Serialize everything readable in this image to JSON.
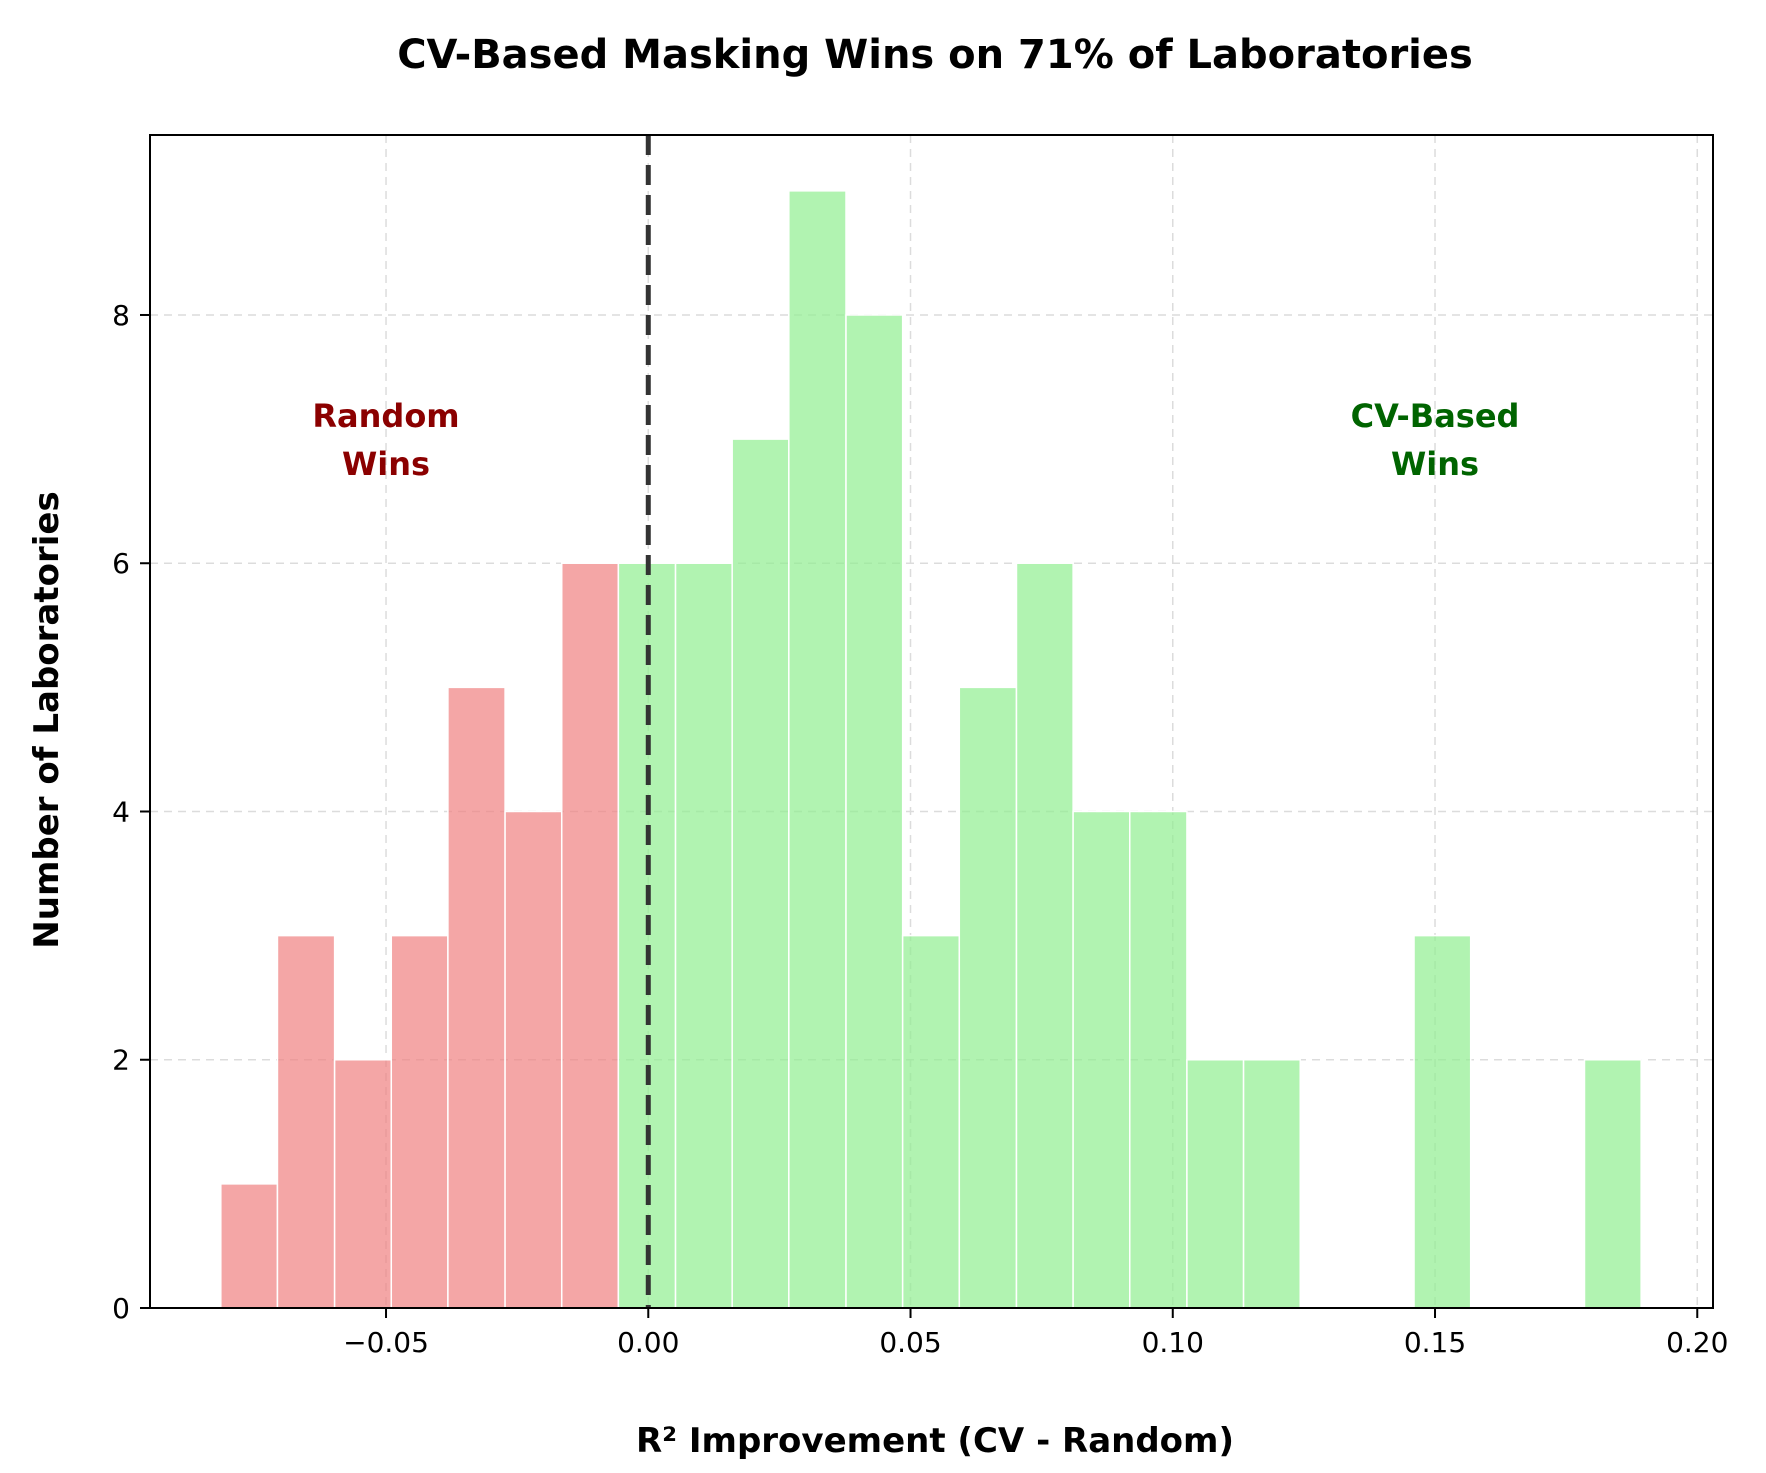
{
  "chart_data": {
    "type": "bar",
    "title": "CV-Based Masking Wins on 71% of Laboratories",
    "xlabel": "R² Improvement (CV - Random)",
    "ylabel": "Number of Laboratories",
    "xlim": [
      -0.095,
      0.203
    ],
    "ylim": [
      0,
      9.45
    ],
    "bin_width": 0.01083,
    "grid": true,
    "xticks": [
      {
        "value": -0.05,
        "label": "−0.05"
      },
      {
        "value": 0.0,
        "label": "0.00"
      },
      {
        "value": 0.05,
        "label": "0.05"
      },
      {
        "value": 0.1,
        "label": "0.10"
      },
      {
        "value": 0.15,
        "label": "0.15"
      },
      {
        "value": 0.2,
        "label": "0.20"
      }
    ],
    "yticks": [
      {
        "value": 0,
        "label": "0"
      },
      {
        "value": 2,
        "label": "2"
      },
      {
        "value": 4,
        "label": "4"
      },
      {
        "value": 6,
        "label": "6"
      },
      {
        "value": 8,
        "label": "8"
      }
    ],
    "series": [
      {
        "name": "Random Wins",
        "color": "#f08080",
        "bins": [
          {
            "x0": -0.0815,
            "x1": -0.0707,
            "count": 1
          },
          {
            "x0": -0.0707,
            "x1": -0.0598,
            "count": 3
          },
          {
            "x0": -0.0598,
            "x1": -0.049,
            "count": 2
          },
          {
            "x0": -0.049,
            "x1": -0.0382,
            "count": 3
          },
          {
            "x0": -0.0382,
            "x1": -0.0273,
            "count": 5
          },
          {
            "x0": -0.0273,
            "x1": -0.0165,
            "count": 4
          },
          {
            "x0": -0.0165,
            "x1": -0.0057,
            "count": 6
          }
        ]
      },
      {
        "name": "CV-Based Wins",
        "color": "#90ee90",
        "bins": [
          {
            "x0": -0.0057,
            "x1": 0.0052,
            "count": 6
          },
          {
            "x0": 0.0052,
            "x1": 0.016,
            "count": 6
          },
          {
            "x0": 0.016,
            "x1": 0.0268,
            "count": 7
          },
          {
            "x0": 0.0268,
            "x1": 0.0377,
            "count": 9
          },
          {
            "x0": 0.0377,
            "x1": 0.0485,
            "count": 8
          },
          {
            "x0": 0.0485,
            "x1": 0.0593,
            "count": 3
          },
          {
            "x0": 0.0593,
            "x1": 0.0702,
            "count": 5
          },
          {
            "x0": 0.0702,
            "x1": 0.081,
            "count": 6
          },
          {
            "x0": 0.081,
            "x1": 0.0918,
            "count": 4
          },
          {
            "x0": 0.0918,
            "x1": 0.1027,
            "count": 4
          },
          {
            "x0": 0.1027,
            "x1": 0.1135,
            "count": 2
          },
          {
            "x0": 0.1135,
            "x1": 0.1243,
            "count": 2
          },
          {
            "x0": 0.146,
            "x1": 0.1568,
            "count": 3
          },
          {
            "x0": 0.1785,
            "x1": 0.1893,
            "count": 2
          }
        ]
      }
    ],
    "reference_line": {
      "x": 0.0,
      "style": "dashed",
      "color": "#333333"
    },
    "annotations": [
      {
        "lines": [
          "Random",
          "Wins"
        ],
        "x": -0.05,
        "y": 7.0,
        "color": "#8b0000"
      },
      {
        "lines": [
          "CV-Based",
          "Wins"
        ],
        "x": 0.15,
        "y": 7.0,
        "color": "#006400"
      }
    ]
  }
}
